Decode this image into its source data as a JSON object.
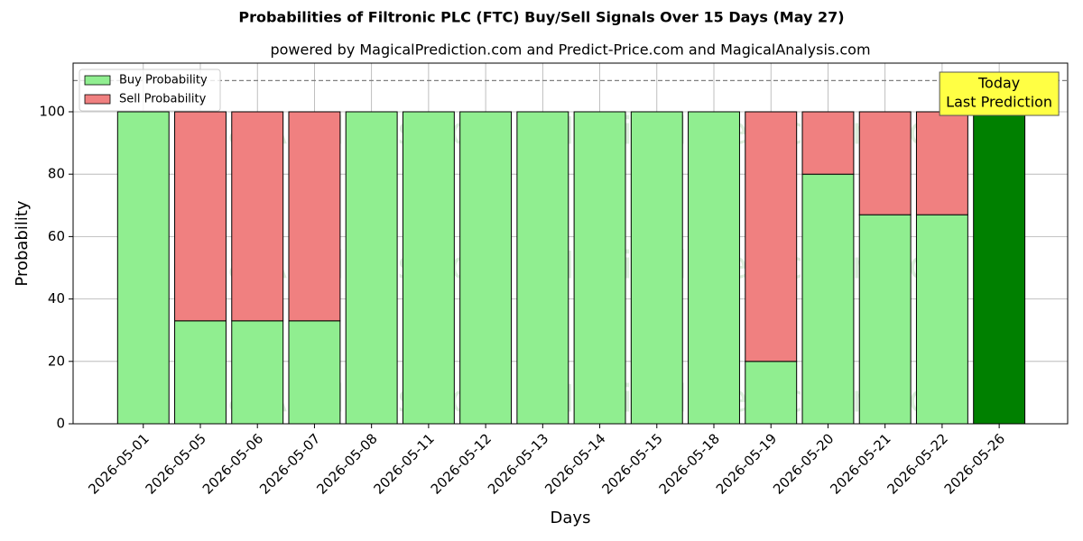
{
  "chart_data": {
    "type": "stacked_bar",
    "title": "Probabilities of Filtronic PLC (FTC) Buy/Sell Signals Over 15 Days (May 27)",
    "subtitle": "powered by MagicalPrediction.com and Predict-Price.com and MagicalAnalysis.com",
    "x_label": "Days",
    "y_label": "Probability",
    "categories": [
      "2026-05-01",
      "2026-05-05",
      "2026-05-06",
      "2026-05-07",
      "2026-05-08",
      "2026-05-11",
      "2026-05-12",
      "2026-05-13",
      "2026-05-14",
      "2026-05-15",
      "2026-05-18",
      "2026-05-19",
      "2026-05-20",
      "2026-05-21",
      "2026-05-22",
      "2026-05-26"
    ],
    "series": [
      {
        "name": "Buy Probability",
        "color": "#90ee90",
        "colors": [
          "#90ee90",
          "#90ee90",
          "#90ee90",
          "#90ee90",
          "#90ee90",
          "#90ee90",
          "#90ee90",
          "#90ee90",
          "#90ee90",
          "#90ee90",
          "#90ee90",
          "#90ee90",
          "#90ee90",
          "#90ee90",
          "#90ee90",
          "#008000"
        ],
        "values": [
          100,
          33,
          33,
          33,
          100,
          100,
          100,
          100,
          100,
          100,
          100,
          20,
          80,
          67,
          67,
          100
        ]
      },
      {
        "name": "Sell Probability",
        "color": "#f08080",
        "values": [
          0,
          67,
          67,
          67,
          0,
          0,
          0,
          0,
          0,
          0,
          0,
          80,
          20,
          33,
          33,
          0
        ]
      }
    ],
    "ylim": [
      0,
      115.6
    ],
    "yticks": [
      0,
      20,
      40,
      60,
      80,
      100
    ],
    "grid": true,
    "legend": "upper left",
    "hline": 110,
    "annotation": [
      "Today",
      "Last Prediction"
    ],
    "watermarks": [
      "MagicalAnalysis.com",
      "MagicalPrediction.com"
    ]
  }
}
